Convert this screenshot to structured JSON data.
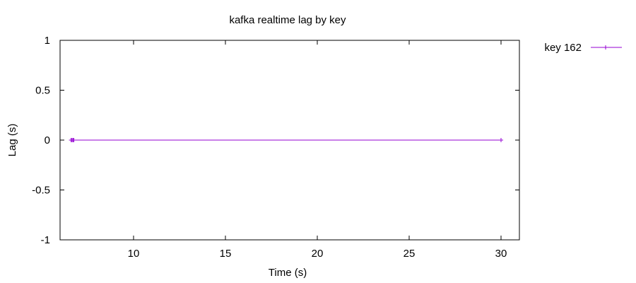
{
  "chart_data": {
    "type": "line",
    "title": "kafka realtime lag by key",
    "xlabel": "Time (s)",
    "ylabel": "Lag (s)",
    "xlim": [
      6.0,
      31.0
    ],
    "ylim": [
      -1,
      1
    ],
    "x_ticks": [
      10,
      15,
      20,
      25,
      30
    ],
    "y_ticks": [
      1,
      0.5,
      0,
      -0.5,
      -1
    ],
    "y_tick_labels": [
      "1",
      "0.5",
      "0",
      "-0.5",
      "-1"
    ],
    "grid": false,
    "legend_position": "outside-top-right",
    "series": [
      {
        "name": "key 162",
        "color": "#9400d3",
        "marker": "plus",
        "points": [
          {
            "x": 6.6,
            "y": 0
          },
          {
            "x": 6.65,
            "y": 0
          },
          {
            "x": 6.7,
            "y": 0
          },
          {
            "x": 6.75,
            "y": 0
          },
          {
            "x": 30.0,
            "y": 0
          }
        ]
      }
    ]
  }
}
